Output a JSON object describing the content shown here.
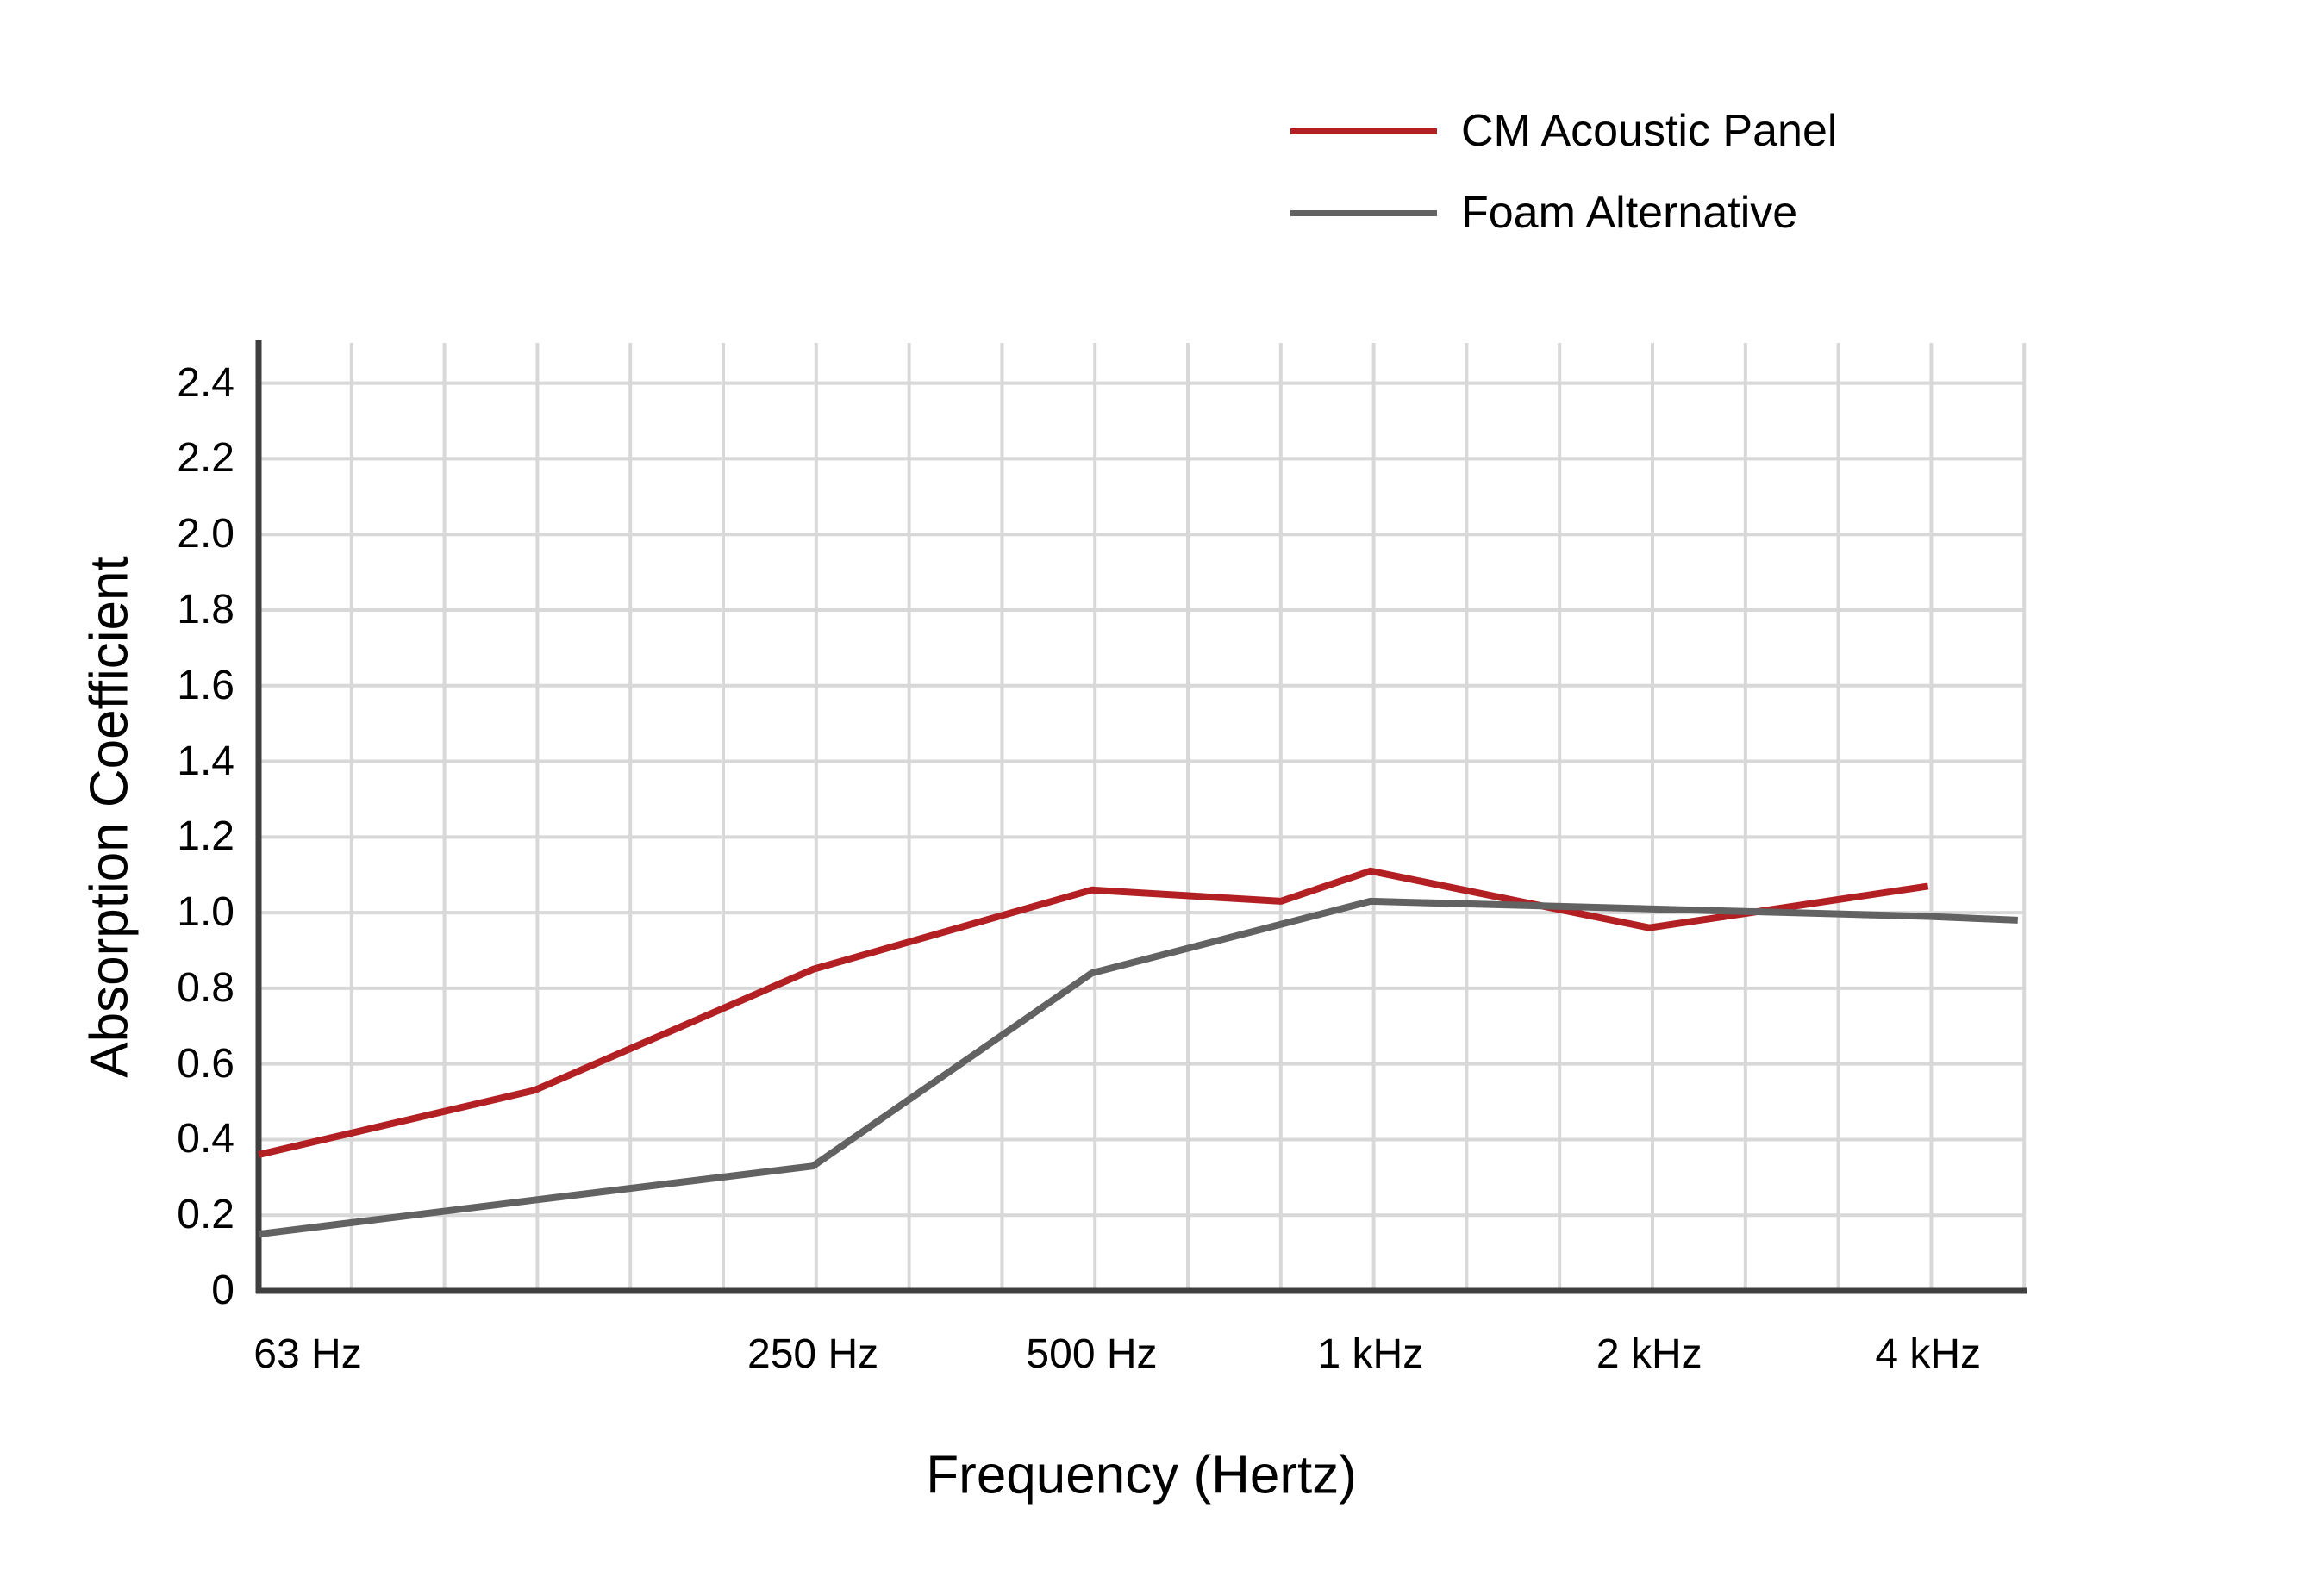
{
  "chart_data": {
    "type": "line",
    "title": "",
    "xlabel": "Frequency (Hertz)",
    "ylabel": "Absorption Coefficient",
    "x_scale": "logarithmic (octave bands, minor gridlines at 1/3 octave)",
    "ylim": [
      0,
      2.5
    ],
    "grid": "on",
    "legend_position": "top-right",
    "y_tick_values": [
      0,
      0.2,
      0.4,
      0.6,
      0.8,
      1.0,
      1.2,
      1.4,
      1.6,
      1.8,
      2.0,
      2.2,
      2.4
    ],
    "y_tick_labels": [
      "0",
      "0.2",
      "0.4",
      "0.6",
      "0.8",
      "1.0",
      "1.2",
      "1.4",
      "1.6",
      "1.8",
      "2.0",
      "2.2",
      "2.4"
    ],
    "x_ticks": [
      {
        "label": "63 Hz",
        "f": 63
      },
      {
        "label": "250 Hz",
        "f": 250
      },
      {
        "label": "500 Hz",
        "f": 500
      },
      {
        "label": "1 kHz",
        "f": 1000
      },
      {
        "label": "2 kHz",
        "f": 2000
      },
      {
        "label": "4 kHz",
        "f": 4000
      }
    ],
    "series": [
      {
        "name": "CM Acoustic Panel",
        "color": "#b22024",
        "points": [
          {
            "f": 63,
            "v": 0.36
          },
          {
            "f": 125,
            "v": 0.53
          },
          {
            "f": 250,
            "v": 0.85
          },
          {
            "f": 500,
            "v": 1.06
          },
          {
            "f": 800,
            "v": 1.03
          },
          {
            "f": 1000,
            "v": 1.11
          },
          {
            "f": 2000,
            "v": 0.96
          },
          {
            "f": 4000,
            "v": 1.07
          }
        ]
      },
      {
        "name": "Foam Alternative",
        "color": "#626262",
        "points": [
          {
            "f": 63,
            "v": 0.15
          },
          {
            "f": 125,
            "v": 0.24
          },
          {
            "f": 250,
            "v": 0.33
          },
          {
            "f": 500,
            "v": 0.84
          },
          {
            "f": 1000,
            "v": 1.03
          },
          {
            "f": 2000,
            "v": 1.01
          },
          {
            "f": 4000,
            "v": 0.99
          },
          {
            "f": 5000,
            "v": 0.98
          }
        ]
      }
    ],
    "colors": {
      "gridline": "#d8d8d8",
      "axis": "#3f3f3f",
      "text": "#000000",
      "background": "#ffffff"
    }
  }
}
